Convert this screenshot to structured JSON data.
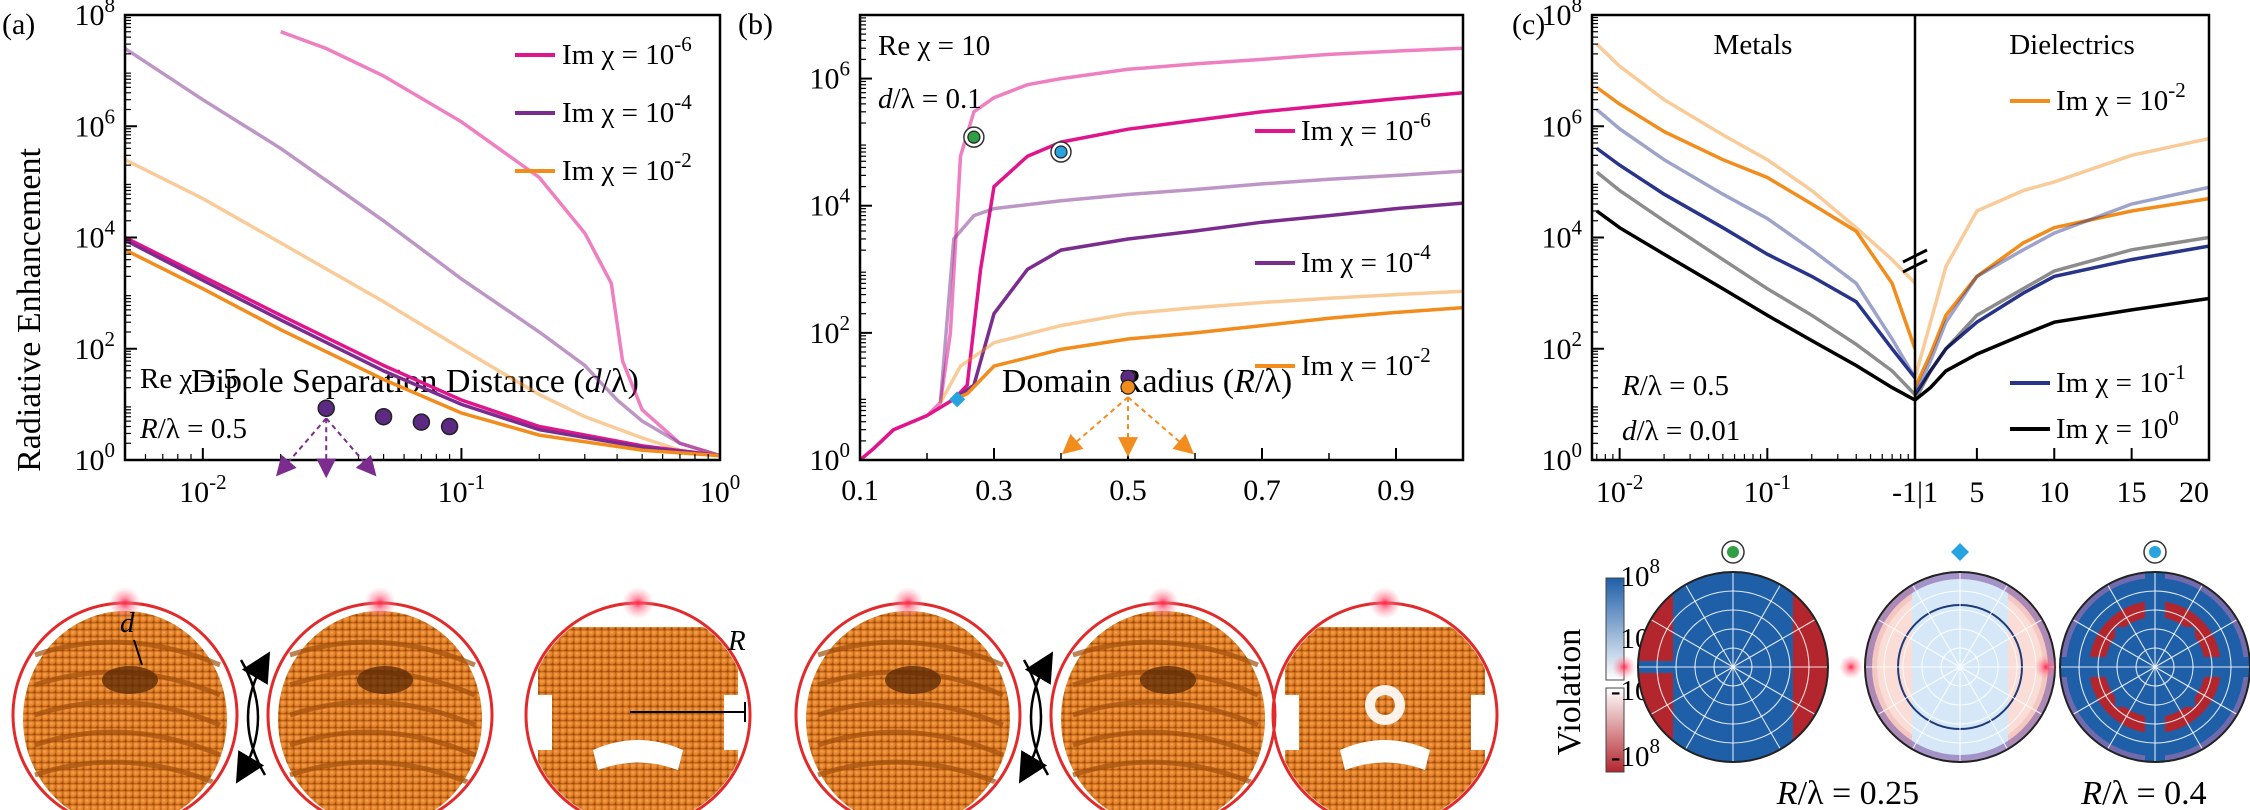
{
  "panels": {
    "a": {
      "label": "(a)",
      "ylabel": "Radiative Enhancement",
      "xlabel": "Dipole Separation Distance (d/λ)",
      "yticks": [
        {
          "b": "10",
          "e": "0"
        },
        {
          "b": "10",
          "e": "2"
        },
        {
          "b": "10",
          "e": "4"
        },
        {
          "b": "10",
          "e": "6"
        },
        {
          "b": "10",
          "e": "8"
        }
      ],
      "xticks": [
        {
          "b": "10",
          "e": "-2"
        },
        {
          "b": "10",
          "e": "-1"
        },
        {
          "b": "10",
          "e": "0"
        }
      ],
      "legend": [
        {
          "pre": "Im χ = 10",
          "e": "-6",
          "color": "#e0158c"
        },
        {
          "pre": "Im χ = 10",
          "e": "-4",
          "color": "#7b2d8e"
        },
        {
          "pre": "Im χ = 10",
          "e": "-2",
          "color": "#f28c1c"
        }
      ],
      "annot": [
        "Re χ = 5",
        "R/λ = 0.5"
      ],
      "sub_labels": [
        "d",
        "R"
      ]
    },
    "b": {
      "label": "(b)",
      "xlabel": "Domain Radius (R/λ)",
      "yticks": [
        {
          "b": "10",
          "e": "0"
        },
        {
          "b": "10",
          "e": "2"
        },
        {
          "b": "10",
          "e": "4"
        },
        {
          "b": "10",
          "e": "6"
        }
      ],
      "xticks": [
        "0.1",
        "0.3",
        "0.5",
        "0.7",
        "0.9"
      ],
      "legend": [
        {
          "pre": "Im χ = 10",
          "e": "-6",
          "color": "#e0158c"
        },
        {
          "pre": "Im χ = 10",
          "e": "-4",
          "color": "#7b2d8e"
        },
        {
          "pre": "Im χ = 10",
          "e": "-2",
          "color": "#f28c1c"
        }
      ],
      "annot": [
        "Re χ = 10",
        "d/λ = 0.1"
      ]
    },
    "c": {
      "label": "(c)",
      "yticks": [
        {
          "b": "10",
          "e": "2"
        },
        {
          "b": "10",
          "e": "4"
        },
        {
          "b": "10",
          "e": "6"
        },
        {
          "b": "10",
          "e": "8"
        }
      ],
      "ytick0": {
        "b": "10",
        "e": "0"
      },
      "xticks_left": [
        {
          "b": "10",
          "e": "-2"
        },
        {
          "b": "10",
          "e": "-1"
        }
      ],
      "xticks_right": [
        "-1|1",
        "5",
        "10",
        "15",
        "20"
      ],
      "regions": [
        "Metals",
        "Dielectrics"
      ],
      "legend": [
        {
          "pre": "Im χ = 10",
          "e": "-2",
          "color": "#f28c1c"
        },
        {
          "pre": "Im χ = 10",
          "e": "-1",
          "color": "#28348a"
        },
        {
          "pre": "Im χ = 10",
          "e": "0",
          "color": "#000000"
        }
      ],
      "annot": [
        "R/λ = 0.5",
        "d/λ = 0.01"
      ],
      "colorbar_label": "Violation",
      "colorbar_ticks": [
        {
          "b": "10",
          "e": "8"
        },
        {
          "b": "10",
          "e": "0"
        },
        {
          "b": "-10",
          "e": "0"
        },
        {
          "b": "-10",
          "e": "8"
        }
      ],
      "polar_labels": [
        "R/λ = 0.25",
        "R/λ = 0.4"
      ]
    }
  },
  "chart_data": [
    {
      "type": "line",
      "panel": "a",
      "x_scale": "log",
      "y_scale": "log",
      "xlim": [
        0.005,
        1
      ],
      "ylim": [
        1,
        100000000
      ],
      "series": [
        {
          "name": "Im χ = 10^-6",
          "color": "#e0158c",
          "opacity": 0.55,
          "x": [
            0.02,
            0.03,
            0.05,
            0.1,
            0.2,
            0.3,
            0.38,
            0.42,
            0.5,
            0.7,
            1.0
          ],
          "y": [
            50000000,
            25000000,
            8000000,
            1200000,
            120000,
            12000,
            1500,
            60,
            8,
            2,
            1.2
          ]
        },
        {
          "name": "Im χ = 10^-4",
          "color": "#7b2d8e",
          "opacity": 0.5,
          "x": [
            0.005,
            0.01,
            0.02,
            0.05,
            0.1,
            0.2,
            0.3,
            0.4,
            0.5,
            0.7,
            1.0
          ],
          "y": [
            25000000,
            3000000,
            400000,
            20000,
            1800,
            200,
            50,
            12,
            5,
            2,
            1.2
          ]
        },
        {
          "name": "Im χ = 10^-2",
          "color": "#f28c1c",
          "opacity": 0.45,
          "x": [
            0.005,
            0.01,
            0.02,
            0.05,
            0.1,
            0.2,
            0.3,
            0.5,
            0.7,
            1.0
          ],
          "y": [
            250000,
            50000,
            8000,
            700,
            100,
            15,
            6,
            2.5,
            1.5,
            1.2
          ]
        },
        {
          "name": "Im χ = 10^-6",
          "color": "#e0158c",
          "opacity": 1,
          "x": [
            0.005,
            0.01,
            0.02,
            0.05,
            0.1,
            0.2,
            0.5,
            1.0
          ],
          "y": [
            10000,
            2000,
            400,
            50,
            12,
            4,
            1.8,
            1.2
          ]
        },
        {
          "name": "Im χ = 10^-4",
          "color": "#7b2d8e",
          "opacity": 1,
          "x": [
            0.005,
            0.01,
            0.02,
            0.05,
            0.1,
            0.2,
            0.5,
            1.0
          ],
          "y": [
            9000,
            1700,
            330,
            40,
            10,
            3.5,
            1.7,
            1.2
          ]
        },
        {
          "name": "Im χ = 10^-2",
          "color": "#f28c1c",
          "opacity": 1,
          "x": [
            0.005,
            0.01,
            0.02,
            0.05,
            0.1,
            0.2,
            0.5,
            1.0
          ],
          "y": [
            6000,
            1200,
            220,
            28,
            7,
            2.8,
            1.5,
            1.2
          ]
        }
      ],
      "markers": [
        {
          "x": 0.03,
          "y": 8.5,
          "color": "#5c2a82"
        },
        {
          "x": 0.05,
          "y": 6.0,
          "color": "#5c2a82"
        },
        {
          "x": 0.07,
          "y": 4.8,
          "color": "#5c2a82"
        },
        {
          "x": 0.09,
          "y": 4.0,
          "color": "#5c2a82"
        }
      ]
    },
    {
      "type": "line",
      "panel": "b",
      "x_scale": "linear",
      "y_scale": "log",
      "xlim": [
        0.1,
        1.0
      ],
      "ylim": [
        1,
        10000000
      ],
      "series": [
        {
          "name": "Im χ = 10^-6",
          "color": "#e0158c",
          "opacity": 0.55,
          "x": [
            0.1,
            0.12,
            0.15,
            0.2,
            0.22,
            0.235,
            0.25,
            0.27,
            0.3,
            0.35,
            0.4,
            0.5,
            0.6,
            0.7,
            0.8,
            0.9,
            1.0
          ],
          "y": [
            1,
            1.5,
            3,
            5,
            8,
            100,
            60000,
            300000,
            500000,
            800000,
            1000000,
            1400000,
            1700000,
            2000000,
            2400000,
            2700000,
            3000000
          ]
        },
        {
          "name": "Im χ = 10^-6",
          "color": "#e0158c",
          "opacity": 1,
          "x": [
            0.1,
            0.12,
            0.15,
            0.2,
            0.24,
            0.26,
            0.28,
            0.3,
            0.35,
            0.4,
            0.5,
            0.6,
            0.7,
            0.8,
            0.9,
            1.0
          ],
          "y": [
            1,
            1.5,
            3,
            5,
            9,
            15,
            1000,
            20000,
            60000,
            100000,
            160000,
            220000,
            300000,
            380000,
            480000,
            600000
          ]
        },
        {
          "name": "Im χ = 10^-4",
          "color": "#7b2d8e",
          "opacity": 0.5,
          "x": [
            0.22,
            0.24,
            0.27,
            0.3,
            0.4,
            0.5,
            0.6,
            0.7,
            0.8,
            0.9,
            1.0
          ],
          "y": [
            8,
            3000,
            7000,
            9000,
            12000,
            15000,
            18000,
            22000,
            26000,
            30000,
            35000
          ]
        },
        {
          "name": "Im χ = 10^-4",
          "color": "#7b2d8e",
          "opacity": 1,
          "x": [
            0.24,
            0.27,
            0.3,
            0.35,
            0.4,
            0.5,
            0.6,
            0.7,
            0.8,
            0.9,
            1.0
          ],
          "y": [
            9,
            15,
            200,
            1000,
            2000,
            3000,
            4000,
            5500,
            7000,
            9000,
            11000
          ]
        },
        {
          "name": "Im χ = 10^-2",
          "color": "#f28c1c",
          "opacity": 0.45,
          "x": [
            0.22,
            0.25,
            0.3,
            0.4,
            0.5,
            0.6,
            0.7,
            0.8,
            0.9,
            1.0
          ],
          "y": [
            8,
            30,
            70,
            130,
            200,
            250,
            300,
            350,
            400,
            450
          ]
        },
        {
          "name": "Im χ = 10^-2",
          "color": "#f28c1c",
          "opacity": 1,
          "x": [
            0.24,
            0.26,
            0.3,
            0.4,
            0.5,
            0.6,
            0.7,
            0.8,
            0.9,
            1.0
          ],
          "y": [
            9,
            11,
            30,
            55,
            80,
            100,
            130,
            170,
            210,
            250
          ]
        }
      ],
      "markers": [
        {
          "x": 0.27,
          "y": 120000,
          "shape": "circle",
          "color": "#2f9e44",
          "ring": true
        },
        {
          "x": 0.4,
          "y": 70000,
          "shape": "circle",
          "color": "#29a3e0",
          "ring": true
        },
        {
          "x": 0.245,
          "y": 9,
          "shape": "diamond",
          "color": "#29a3e0"
        },
        {
          "x": 0.5,
          "y": 20,
          "shape": "circle",
          "color": "#5c2a82"
        },
        {
          "x": 0.5,
          "y": 14,
          "shape": "circle",
          "color": "#f28c1c"
        }
      ]
    },
    {
      "type": "line",
      "panel": "c",
      "x_scale": "split: log metals (|Re χ| 0.01–1) | linear dielectrics (1–20)",
      "y_scale": "log",
      "ylim": [
        1,
        100000000
      ],
      "series": [
        {
          "name": "Im χ = 10^-2",
          "color": "#f28c1c",
          "opacity": 0.45,
          "metals_x": [
            0.007,
            0.01,
            0.02,
            0.05,
            0.1,
            0.2,
            0.4,
            0.7,
            1
          ],
          "metals_y": [
            30000000,
            12000000,
            3000000,
            700000,
            250000,
            70000,
            15000,
            4000,
            1500
          ],
          "diel_x": [
            1,
            2,
            3,
            5,
            8,
            10,
            15,
            20
          ],
          "diel_y": [
            30,
            300,
            3000,
            30000,
            70000,
            100000,
            300000,
            600000
          ]
        },
        {
          "name": "Im χ = 10^-2",
          "color": "#f28c1c",
          "opacity": 1,
          "metals_x": [
            0.007,
            0.01,
            0.02,
            0.05,
            0.1,
            0.2,
            0.4,
            0.7,
            1
          ],
          "metals_y": [
            5000000,
            2500000,
            800000,
            250000,
            120000,
            40000,
            13000,
            1500,
            100
          ],
          "diel_x": [
            1,
            2,
            3,
            5,
            8,
            10,
            15,
            20
          ],
          "diel_y": [
            20,
            80,
            400,
            2000,
            8000,
            15000,
            30000,
            50000
          ]
        },
        {
          "name": "Im χ = 10^-1",
          "color": "#28348a",
          "opacity": 0.45,
          "metals_x": [
            0.007,
            0.01,
            0.02,
            0.05,
            0.1,
            0.2,
            0.4,
            0.7,
            1
          ],
          "metals_y": [
            2000000,
            900000,
            250000,
            60000,
            22000,
            6000,
            1500,
            150,
            30
          ],
          "diel_x": [
            1,
            2,
            3,
            5,
            8,
            10,
            15,
            20
          ],
          "diel_y": [
            15,
            60,
            300,
            2000,
            6000,
            12000,
            40000,
            80000
          ]
        },
        {
          "name": "Im χ = 10^-1",
          "color": "#28348a",
          "opacity": 1,
          "metals_x": [
            0.007,
            0.01,
            0.02,
            0.05,
            0.1,
            0.2,
            0.4,
            0.7,
            1
          ],
          "metals_y": [
            400000,
            200000,
            60000,
            15000,
            5000,
            2000,
            700,
            100,
            30
          ],
          "diel_x": [
            1,
            2,
            3,
            5,
            8,
            10,
            15,
            20
          ],
          "diel_y": [
            15,
            40,
            100,
            300,
            1000,
            2000,
            4000,
            7000
          ]
        },
        {
          "name": "Im χ = 10^0",
          "color": "#000000",
          "opacity": 0.45,
          "metals_x": [
            0.007,
            0.01,
            0.02,
            0.05,
            0.1,
            0.2,
            0.4,
            0.7,
            1
          ],
          "metals_y": [
            150000,
            70000,
            20000,
            4000,
            1200,
            400,
            120,
            40,
            15
          ],
          "diel_x": [
            1,
            2,
            3,
            5,
            8,
            10,
            15,
            20
          ],
          "diel_y": [
            12,
            40,
            100,
            400,
            1200,
            2500,
            6000,
            10000
          ]
        },
        {
          "name": "Im χ = 10^0",
          "color": "#000000",
          "opacity": 1,
          "metals_x": [
            0.007,
            0.01,
            0.02,
            0.05,
            0.1,
            0.2,
            0.4,
            0.7,
            1
          ],
          "metals_y": [
            30000,
            15000,
            5000,
            1200,
            400,
            140,
            50,
            20,
            12
          ],
          "diel_x": [
            1,
            2,
            3,
            5,
            8,
            10,
            15,
            20
          ],
          "diel_y": [
            12,
            20,
            40,
            80,
            180,
            300,
            500,
            800
          ]
        }
      ]
    }
  ],
  "colors": {
    "shape_orange": "#e9842a",
    "shape_dark": "#a14e0c",
    "ring_red": "#e22a2a",
    "polar_blue": "#1f5fa8",
    "polar_red": "#b3262e"
  }
}
